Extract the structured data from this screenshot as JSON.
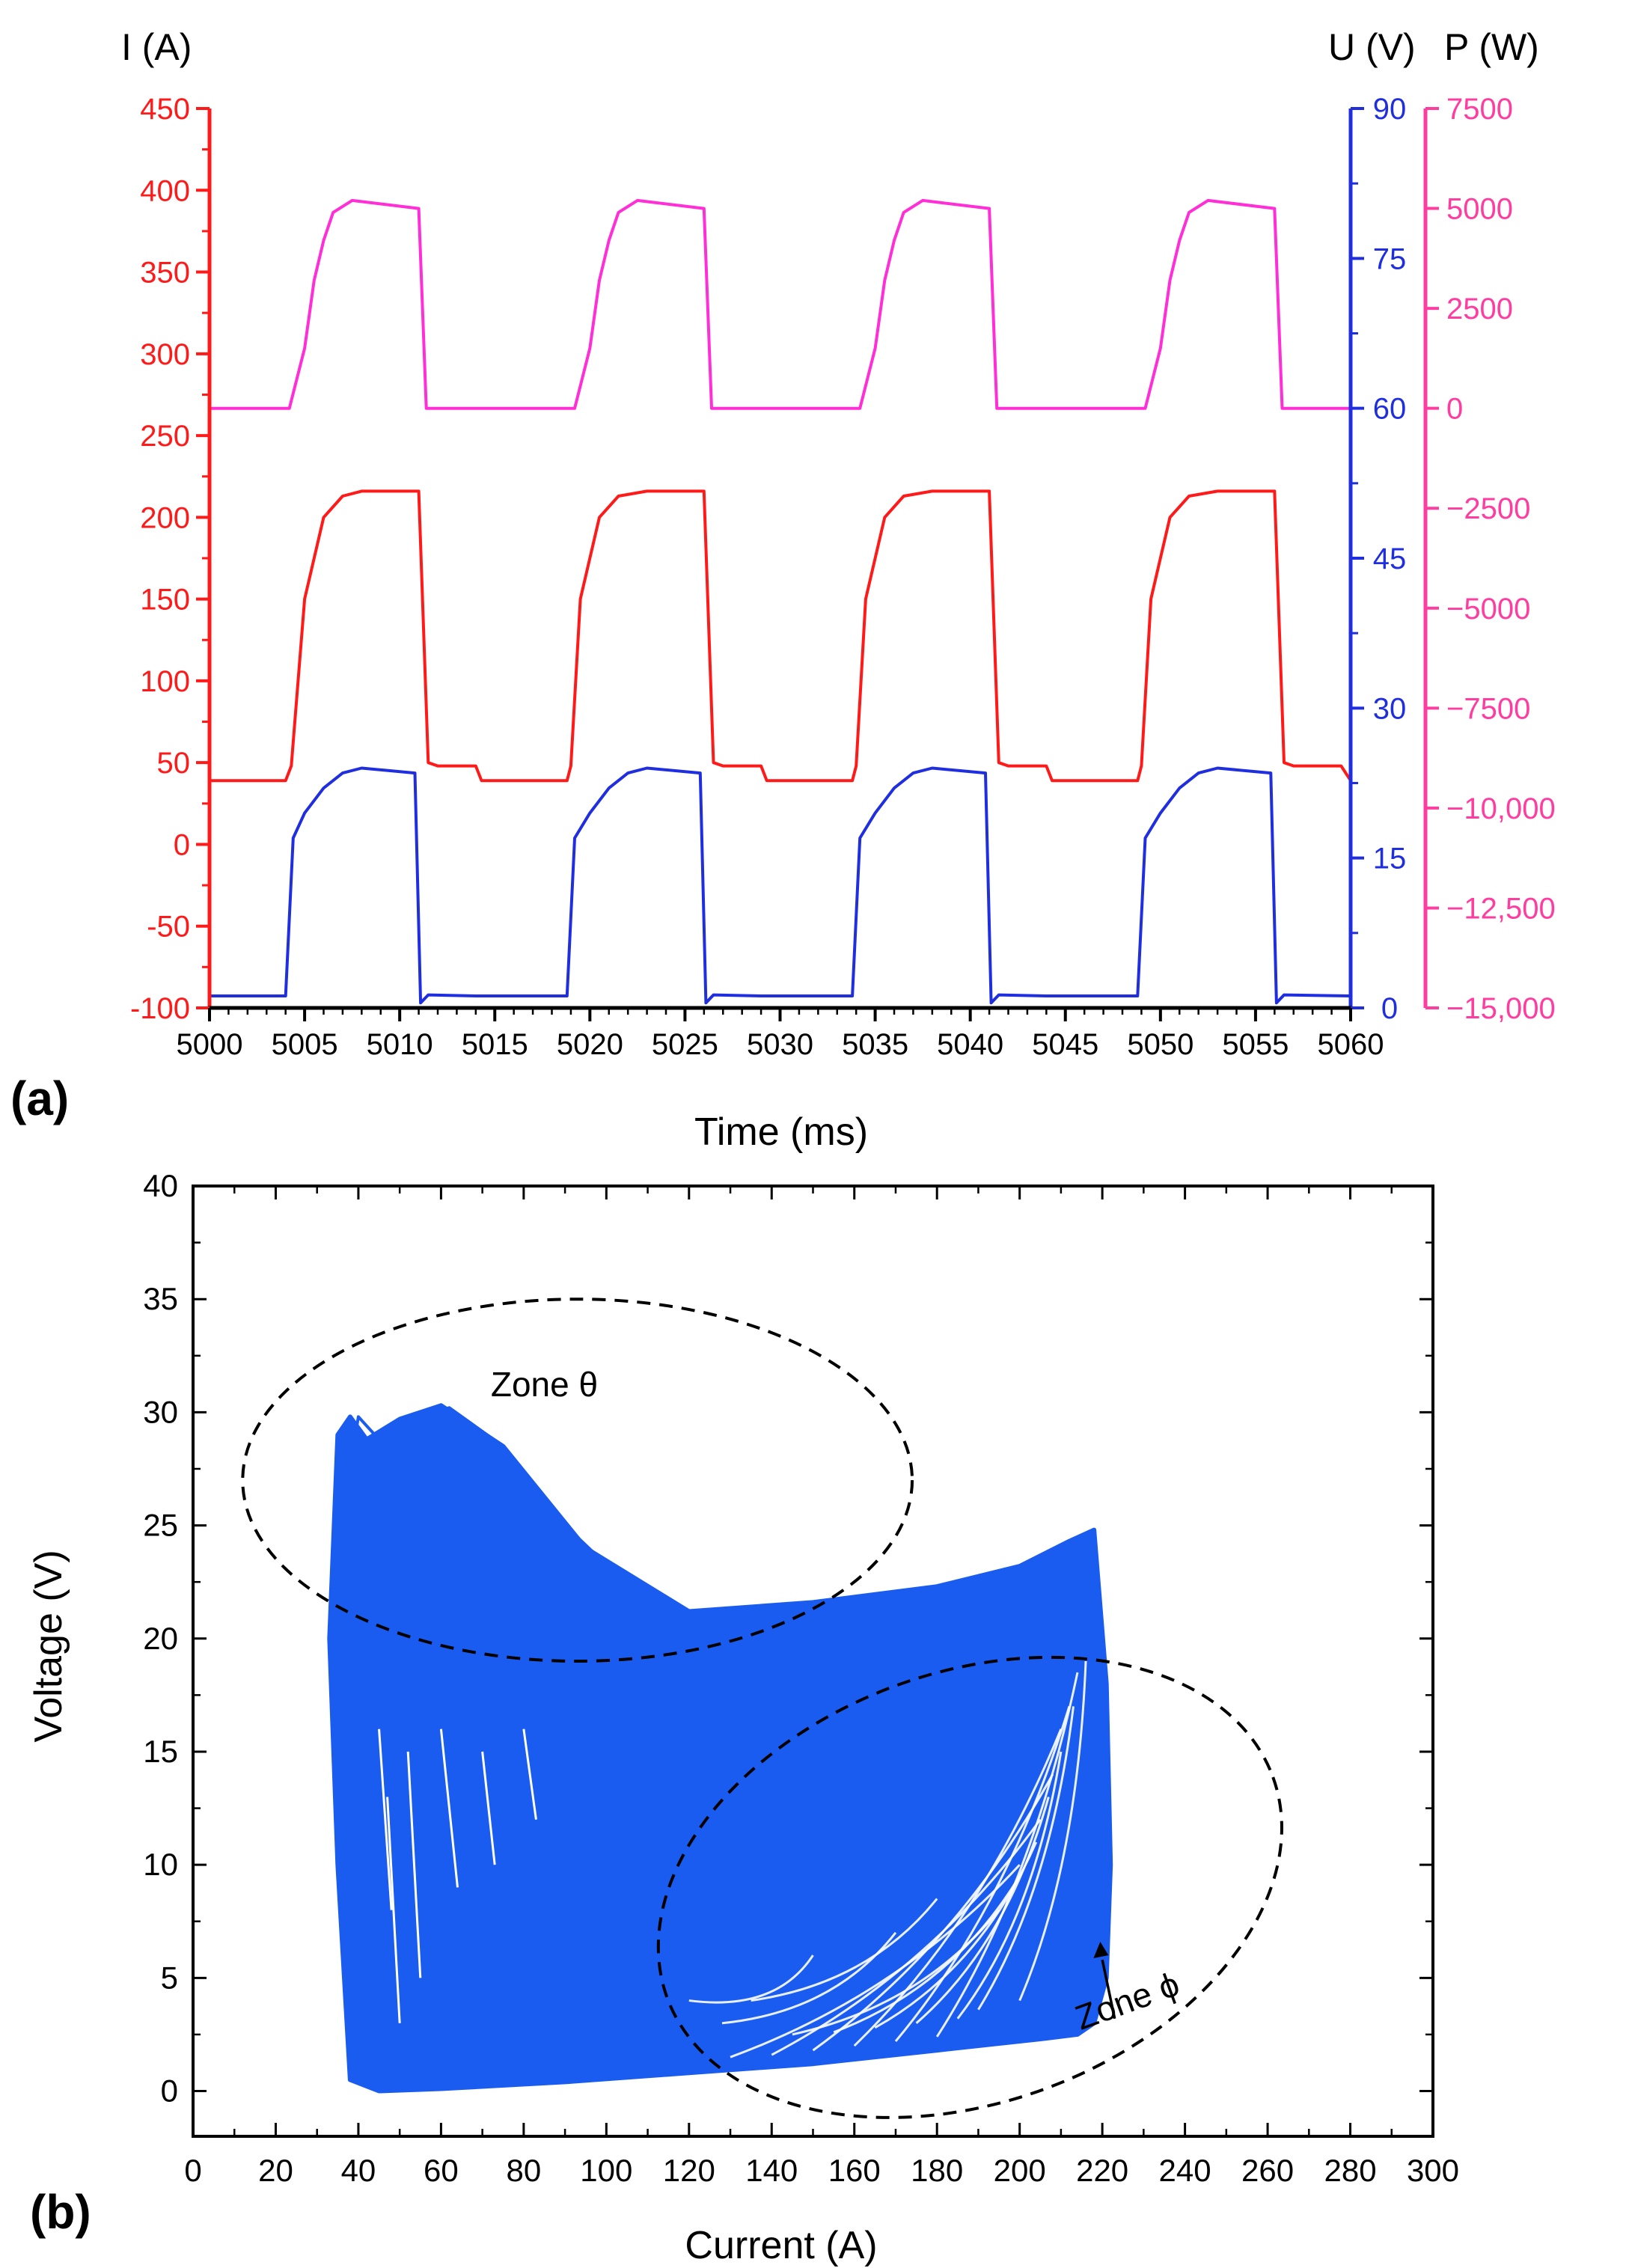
{
  "colors": {
    "current": "#ff1a1a",
    "voltage": "#1f2fe0",
    "power": "#ff2ed6",
    "power_axis": "#ff3da0",
    "cloud": "#1a5cf0"
  },
  "chart_data": [
    {
      "panel_label": "(a)",
      "type": "line",
      "xlabel": "Time (ms)",
      "xlim": [
        5000,
        5060
      ],
      "x_ticks": [
        "5000",
        "5005",
        "5010",
        "5015",
        "5020",
        "5025",
        "5030",
        "5035",
        "5040",
        "5045",
        "5050",
        "5055",
        "5060"
      ],
      "axes": {
        "current": {
          "label": "I (A)",
          "ylim": [
            -100,
            450
          ],
          "ticks": [
            "450",
            "400",
            "350",
            "300",
            "250",
            "200",
            "150",
            "100",
            "50",
            "0",
            "-50",
            "-100"
          ]
        },
        "voltage": {
          "label": "U (V)",
          "ylim": [
            0,
            90
          ],
          "ticks": [
            "90",
            "75",
            "60",
            "45",
            "30",
            "15",
            "0"
          ]
        },
        "power": {
          "label": "P (W)",
          "ylim": [
            -15000,
            7500
          ],
          "ticks": [
            "7500",
            "5000",
            "2500",
            "0",
            "−2500",
            "−5000",
            "−7500",
            "−10,000",
            "−12,500",
            "−15,000"
          ]
        }
      },
      "series": [
        {
          "name": "I (A)",
          "axis": "current",
          "x": [
            5000,
            5004.0,
            5004.3,
            5005,
            5006,
            5007,
            5008,
            5010.5,
            5011.0,
            5011.5,
            5012,
            5014,
            5014.3,
            5018.8,
            5019.0,
            5019.5,
            5020.5,
            5021.5,
            5023,
            5025.5,
            5026.0,
            5026.5,
            5027,
            5029,
            5029.3,
            5033.8,
            5034.0,
            5034.5,
            5035.5,
            5036.5,
            5038,
            5040.5,
            5041.0,
            5041.5,
            5042,
            5044,
            5044.3,
            5048.8,
            5049.0,
            5049.5,
            5050.5,
            5051.5,
            5053,
            5055.5,
            5056.0,
            5056.5,
            5057,
            5059.5,
            5060
          ],
          "y": [
            39,
            39,
            48,
            150,
            200,
            213,
            216,
            216,
            216,
            50,
            48,
            48,
            39,
            39,
            48,
            150,
            200,
            213,
            216,
            216,
            216,
            50,
            48,
            48,
            39,
            39,
            48,
            150,
            200,
            213,
            216,
            216,
            216,
            50,
            48,
            48,
            39,
            39,
            48,
            150,
            200,
            213,
            216,
            216,
            216,
            50,
            48,
            48,
            39
          ]
        },
        {
          "name": "U (V)",
          "axis": "voltage",
          "x": [
            5000,
            5004.0,
            5004.4,
            5005,
            5006,
            5007,
            5008,
            5010.8,
            5011.1,
            5011.5,
            5014,
            5018.8,
            5019.2,
            5020,
            5021,
            5022,
            5023,
            5025.8,
            5026.1,
            5026.5,
            5029,
            5033.8,
            5034.2,
            5035,
            5036,
            5037,
            5038,
            5040.8,
            5041.1,
            5041.5,
            5044,
            5048.8,
            5049.2,
            5050,
            5051,
            5052,
            5053,
            5055.8,
            5056.1,
            5056.5,
            5060
          ],
          "y": [
            1.2,
            1.2,
            17,
            19.5,
            22,
            23.5,
            24,
            23.5,
            0.5,
            1.3,
            1.2,
            1.2,
            17,
            19.5,
            22,
            23.5,
            24,
            23.5,
            0.5,
            1.3,
            1.2,
            1.2,
            17,
            19.5,
            22,
            23.5,
            24,
            23.5,
            0.5,
            1.3,
            1.2,
            1.2,
            17,
            19.5,
            22,
            23.5,
            24,
            23.5,
            0.5,
            1.3,
            1.2
          ]
        },
        {
          "name": "P (W)",
          "axis": "power",
          "x": [
            5000,
            5004.2,
            5005,
            5005.5,
            5006,
            5006.5,
            5007.5,
            5011.0,
            5011.4,
            5011.6,
            5019.2,
            5020,
            5020.5,
            5021,
            5021.5,
            5022.5,
            5026.0,
            5026.4,
            5026.6,
            5034.2,
            5035,
            5035.5,
            5036,
            5036.5,
            5037.5,
            5041.0,
            5041.4,
            5041.6,
            5049.2,
            5050,
            5050.5,
            5051,
            5051.5,
            5052.5,
            5056.0,
            5056.4,
            5056.6,
            5060
          ],
          "y": [
            0,
            0,
            1500,
            3200,
            4200,
            4900,
            5200,
            5000,
            0,
            0,
            0,
            1500,
            3200,
            4200,
            4900,
            5200,
            5000,
            0,
            0,
            0,
            1500,
            3200,
            4200,
            4900,
            5200,
            5000,
            0,
            0,
            0,
            1500,
            3200,
            4200,
            4900,
            5200,
            5000,
            0,
            0,
            0
          ]
        }
      ]
    },
    {
      "panel_label": "(b)",
      "type": "scatter",
      "xlabel": "Current (A)",
      "ylabel": "Voltage (V)",
      "xlim": [
        0,
        300
      ],
      "ylim": [
        -2,
        40
      ],
      "x_ticks": [
        "0",
        "20",
        "40",
        "60",
        "80",
        "100",
        "120",
        "140",
        "160",
        "180",
        "200",
        "220",
        "240",
        "260",
        "280",
        "300"
      ],
      "y_ticks": [
        "40",
        "35",
        "30",
        "25",
        "20",
        "15",
        "10",
        "5",
        "0"
      ],
      "description": "dense blue current-voltage cloud spanning about 30 to 225 A and 0 to 30 V",
      "outline": {
        "x": [
          33,
          35,
          38,
          42,
          50,
          60,
          75,
          95,
          120,
          150,
          180,
          200,
          212,
          218,
          221,
          222,
          221,
          218,
          214,
          205,
          180,
          150,
          120,
          90,
          60,
          45,
          38,
          35
        ],
        "y": [
          20,
          29,
          29.8,
          28.8,
          29.7,
          30.3,
          28.5,
          24,
          21.2,
          21.6,
          22.3,
          23.2,
          24.3,
          24.8,
          18,
          10,
          5,
          3,
          2.5,
          2.3,
          1.8,
          1.2,
          0.8,
          0.4,
          0.1,
          0,
          0.5,
          10
        ]
      },
      "upper_loops": [
        {
          "x": [
            35,
            40,
            48,
            58,
            68,
            80,
            92,
            105,
            118,
            130
          ],
          "y": [
            24,
            29.8,
            28.2,
            26.5,
            25,
            23.5,
            22.3,
            21.6,
            21.2,
            21.3
          ]
        },
        {
          "x": [
            35,
            42,
            52,
            62,
            75,
            90,
            105,
            120
          ],
          "y": [
            24,
            28.2,
            29.6,
            30.2,
            28.5,
            25,
            22.4,
            21.2
          ]
        },
        {
          "x": [
            35,
            40,
            50,
            62,
            75,
            88,
            100,
            112
          ],
          "y": [
            23,
            27.8,
            27,
            25.5,
            24,
            22.8,
            21.8,
            21.3
          ]
        },
        {
          "x": [
            35,
            42,
            55,
            68,
            80,
            95,
            108
          ],
          "y": [
            22,
            26.8,
            26,
            24.5,
            23.2,
            22,
            21.4
          ]
        },
        {
          "x": [
            35,
            45,
            58,
            70,
            85,
            100
          ],
          "y": [
            22,
            25.8,
            25.2,
            23.8,
            22.6,
            21.6
          ]
        },
        {
          "x": [
            35,
            48,
            60,
            75,
            90
          ],
          "y": [
            22,
            25.2,
            24.3,
            23,
            22
          ]
        }
      ],
      "zones": [
        {
          "label": "Zone θ",
          "center": [
            93,
            27
          ],
          "radii": [
            81,
            8
          ]
        },
        {
          "label": "Zone ϕ",
          "center": [
            188,
            9
          ],
          "radii": [
            78,
            9.5
          ],
          "rotation_deg": -20
        }
      ]
    }
  ]
}
